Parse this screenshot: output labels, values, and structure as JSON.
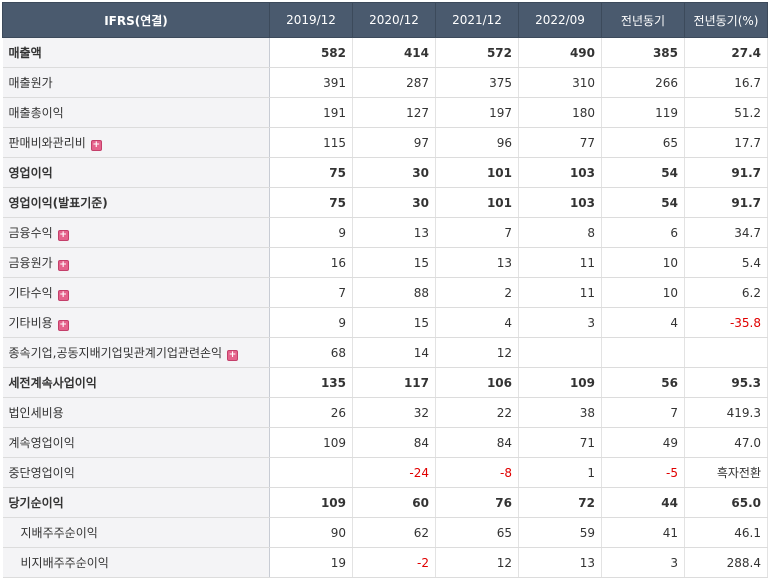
{
  "table": {
    "headers": [
      "IFRS(연결)",
      "2019/12",
      "2020/12",
      "2021/12",
      "2022/09",
      "전년동기",
      "전년동기(%)"
    ],
    "rows": [
      {
        "label": "매출액",
        "bold": true,
        "expand": false,
        "sub": false,
        "values": [
          "582",
          "414",
          "572",
          "490",
          "385",
          "27.4"
        ]
      },
      {
        "label": "매출원가",
        "bold": false,
        "expand": false,
        "sub": false,
        "values": [
          "391",
          "287",
          "375",
          "310",
          "266",
          "16.7"
        ]
      },
      {
        "label": "매출총이익",
        "bold": false,
        "expand": false,
        "sub": false,
        "values": [
          "191",
          "127",
          "197",
          "180",
          "119",
          "51.2"
        ]
      },
      {
        "label": "판매비와관리비",
        "bold": false,
        "expand": true,
        "sub": false,
        "values": [
          "115",
          "97",
          "96",
          "77",
          "65",
          "17.7"
        ]
      },
      {
        "label": "영업이익",
        "bold": true,
        "expand": false,
        "sub": false,
        "values": [
          "75",
          "30",
          "101",
          "103",
          "54",
          "91.7"
        ]
      },
      {
        "label": "영업이익(발표기준)",
        "bold": true,
        "expand": false,
        "sub": false,
        "values": [
          "75",
          "30",
          "101",
          "103",
          "54",
          "91.7"
        ]
      },
      {
        "label": "금융수익",
        "bold": false,
        "expand": true,
        "sub": false,
        "values": [
          "9",
          "13",
          "7",
          "8",
          "6",
          "34.7"
        ]
      },
      {
        "label": "금융원가",
        "bold": false,
        "expand": true,
        "sub": false,
        "values": [
          "16",
          "15",
          "13",
          "11",
          "10",
          "5.4"
        ]
      },
      {
        "label": "기타수익",
        "bold": false,
        "expand": true,
        "sub": false,
        "values": [
          "7",
          "88",
          "2",
          "11",
          "10",
          "6.2"
        ]
      },
      {
        "label": "기타비용",
        "bold": false,
        "expand": true,
        "sub": false,
        "values": [
          "9",
          "15",
          "4",
          "3",
          "4",
          "-35.8"
        ]
      },
      {
        "label": "종속기업,공동지배기업및관계기업관련손익",
        "bold": false,
        "expand": true,
        "sub": false,
        "values": [
          "68",
          "14",
          "12",
          "",
          "",
          ""
        ]
      },
      {
        "label": "세전계속사업이익",
        "bold": true,
        "expand": false,
        "sub": false,
        "values": [
          "135",
          "117",
          "106",
          "109",
          "56",
          "95.3"
        ]
      },
      {
        "label": "법인세비용",
        "bold": false,
        "expand": false,
        "sub": false,
        "values": [
          "26",
          "32",
          "22",
          "38",
          "7",
          "419.3"
        ]
      },
      {
        "label": "계속영업이익",
        "bold": false,
        "expand": false,
        "sub": false,
        "values": [
          "109",
          "84",
          "84",
          "71",
          "49",
          "47.0"
        ]
      },
      {
        "label": "중단영업이익",
        "bold": false,
        "expand": false,
        "sub": false,
        "values": [
          "",
          "-24",
          "-8",
          "1",
          "-5",
          "흑자전환"
        ]
      },
      {
        "label": "당기순이익",
        "bold": true,
        "expand": false,
        "sub": false,
        "values": [
          "109",
          "60",
          "76",
          "72",
          "44",
          "65.0"
        ]
      },
      {
        "label": "지배주주순이익",
        "bold": false,
        "expand": false,
        "sub": true,
        "values": [
          "90",
          "62",
          "65",
          "59",
          "41",
          "46.1"
        ]
      },
      {
        "label": "비지배주주순이익",
        "bold": false,
        "expand": false,
        "sub": true,
        "values": [
          "19",
          "-2",
          "12",
          "13",
          "3",
          "288.4"
        ]
      }
    ]
  },
  "icons": {
    "expand": "plus-icon"
  },
  "colors": {
    "header_bg": "#4a5a6e",
    "negative": "#e00000",
    "expand": "#e5638c"
  }
}
